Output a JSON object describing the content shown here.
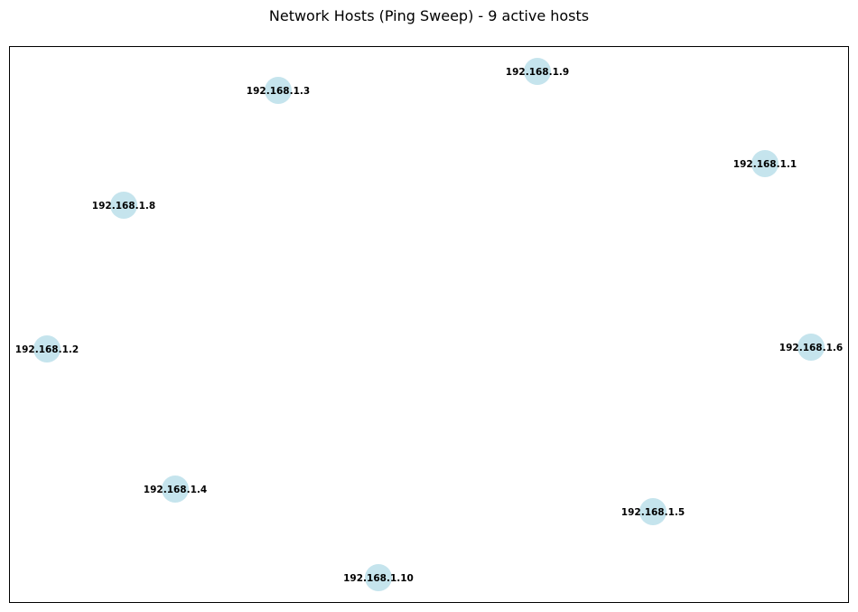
{
  "title": "Network Hosts (Ping Sweep) - 9 active hosts",
  "node_color": "#add8e6",
  "hosts": [
    {
      "ip": "192.168.1.1"
    },
    {
      "ip": "192.168.1.2"
    },
    {
      "ip": "192.168.1.3"
    },
    {
      "ip": "192.168.1.4"
    },
    {
      "ip": "192.168.1.5"
    },
    {
      "ip": "192.168.1.6"
    },
    {
      "ip": "192.168.1.8"
    },
    {
      "ip": "192.168.1.9"
    },
    {
      "ip": "192.168.1.10"
    }
  ]
}
